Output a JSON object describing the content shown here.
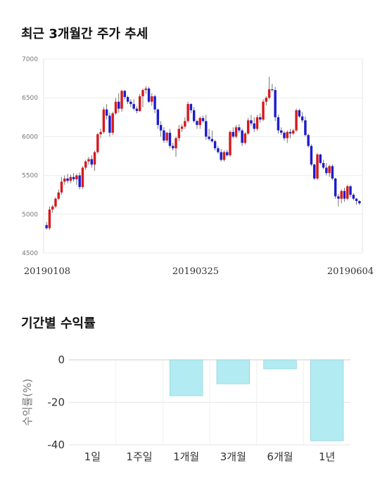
{
  "sections": {
    "price_title": "최근 3개월간 주가 추세",
    "returns_title": "기간별 수익률"
  },
  "chart_data": [
    {
      "type": "candlestick",
      "title": "최근 3개월간 주가 추세",
      "ylim": [
        4500,
        7000
      ],
      "yticks": [
        "7000",
        "6500",
        "6000",
        "5500",
        "5000",
        "4500"
      ],
      "xticks": [
        "20190108",
        "20190325",
        "20190604"
      ],
      "grid": true,
      "colors": {
        "up": "#d7191c",
        "down": "#1c1ccf",
        "wick": "#555555"
      },
      "candles": [
        [
          4860,
          4900,
          4800,
          4820
        ],
        [
          4820,
          5100,
          4800,
          5060
        ],
        [
          5060,
          5120,
          5020,
          5100
        ],
        [
          5100,
          5220,
          5080,
          5200
        ],
        [
          5200,
          5320,
          5180,
          5280
        ],
        [
          5280,
          5480,
          5250,
          5420
        ],
        [
          5420,
          5500,
          5380,
          5460
        ],
        [
          5460,
          5520,
          5400,
          5430
        ],
        [
          5430,
          5510,
          5400,
          5480
        ],
        [
          5480,
          5530,
          5420,
          5450
        ],
        [
          5450,
          5520,
          5380,
          5500
        ],
        [
          5500,
          5540,
          5320,
          5350
        ],
        [
          5350,
          5620,
          5330,
          5600
        ],
        [
          5600,
          5700,
          5570,
          5680
        ],
        [
          5680,
          5740,
          5640,
          5710
        ],
        [
          5710,
          5760,
          5600,
          5640
        ],
        [
          5640,
          5820,
          5560,
          5800
        ],
        [
          5800,
          6050,
          5780,
          6030
        ],
        [
          6030,
          6100,
          5980,
          6060
        ],
        [
          6060,
          6380,
          6040,
          6350
        ],
        [
          6350,
          6420,
          6220,
          6270
        ],
        [
          6270,
          6310,
          6000,
          6050
        ],
        [
          6050,
          6320,
          6020,
          6300
        ],
        [
          6300,
          6500,
          6280,
          6450
        ],
        [
          6450,
          6560,
          6310,
          6360
        ],
        [
          6360,
          6600,
          6320,
          6590
        ],
        [
          6590,
          6600,
          6480,
          6510
        ],
        [
          6510,
          6530,
          6420,
          6450
        ],
        [
          6450,
          6480,
          6380,
          6420
        ],
        [
          6420,
          6480,
          6340,
          6360
        ],
        [
          6360,
          6390,
          6300,
          6330
        ],
        [
          6330,
          6550,
          6320,
          6520
        ],
        [
          6520,
          6620,
          6380,
          6600
        ],
        [
          6600,
          6650,
          6550,
          6620
        ],
        [
          6620,
          6640,
          6430,
          6450
        ],
        [
          6450,
          6560,
          6400,
          6520
        ],
        [
          6520,
          6540,
          6300,
          6350
        ],
        [
          6350,
          6360,
          6100,
          6150
        ],
        [
          6150,
          6200,
          6000,
          6080
        ],
        [
          6080,
          6120,
          5920,
          5950
        ],
        [
          5950,
          6060,
          5920,
          6050
        ],
        [
          6050,
          6100,
          5850,
          5880
        ],
        [
          5880,
          5920,
          5820,
          5850
        ],
        [
          5850,
          6000,
          5740,
          5980
        ],
        [
          5980,
          6150,
          5940,
          6100
        ],
        [
          6100,
          6160,
          6060,
          6130
        ],
        [
          6130,
          6250,
          6100,
          6200
        ],
        [
          6200,
          6450,
          6180,
          6420
        ],
        [
          6420,
          6430,
          6300,
          6340
        ],
        [
          6340,
          6380,
          6180,
          6200
        ],
        [
          6200,
          6220,
          6100,
          6150
        ],
        [
          6150,
          6260,
          6100,
          6240
        ],
        [
          6240,
          6270,
          6180,
          6200
        ],
        [
          6200,
          6280,
          5960,
          6000
        ],
        [
          6000,
          6100,
          5950,
          5970
        ],
        [
          5970,
          6080,
          5920,
          5940
        ],
        [
          5940,
          5960,
          5820,
          5850
        ],
        [
          5850,
          5880,
          5780,
          5800
        ],
        [
          5800,
          5840,
          5680,
          5700
        ],
        [
          5700,
          5820,
          5680,
          5800
        ],
        [
          5800,
          5830,
          5740,
          5760
        ],
        [
          5760,
          6080,
          5740,
          6060
        ],
        [
          6060,
          6120,
          5980,
          6000
        ],
        [
          6000,
          6150,
          5980,
          6120
        ],
        [
          6120,
          6160,
          6050,
          6080
        ],
        [
          6080,
          6100,
          5880,
          5920
        ],
        [
          5920,
          6060,
          5900,
          6040
        ],
        [
          6040,
          6240,
          6020,
          6210
        ],
        [
          6210,
          6280,
          6140,
          6170
        ],
        [
          6170,
          6250,
          6060,
          6100
        ],
        [
          6100,
          6280,
          6080,
          6250
        ],
        [
          6250,
          6300,
          6180,
          6220
        ],
        [
          6220,
          6480,
          6200,
          6450
        ],
        [
          6450,
          6520,
          6400,
          6500
        ],
        [
          6500,
          6770,
          6480,
          6610
        ],
        [
          6610,
          6680,
          6580,
          6600
        ],
        [
          6600,
          6640,
          6200,
          6250
        ],
        [
          6250,
          6280,
          6040,
          6080
        ],
        [
          6080,
          6120,
          6020,
          6050
        ],
        [
          6050,
          6070,
          5950,
          5980
        ],
        [
          5980,
          6080,
          5920,
          6060
        ],
        [
          6060,
          6100,
          5980,
          6040
        ],
        [
          6040,
          6100,
          6020,
          6080
        ],
        [
          6080,
          6360,
          6060,
          6340
        ],
        [
          6340,
          6360,
          6240,
          6260
        ],
        [
          6260,
          6320,
          6180,
          6210
        ],
        [
          6210,
          6260,
          6000,
          6020
        ],
        [
          6020,
          6040,
          5860,
          5880
        ],
        [
          5880,
          5900,
          5620,
          5640
        ],
        [
          5640,
          5650,
          5440,
          5460
        ],
        [
          5460,
          5790,
          5440,
          5770
        ],
        [
          5770,
          5780,
          5640,
          5660
        ],
        [
          5660,
          5700,
          5580,
          5600
        ],
        [
          5600,
          5660,
          5500,
          5530
        ],
        [
          5530,
          5640,
          5480,
          5620
        ],
        [
          5620,
          5640,
          5440,
          5460
        ],
        [
          5460,
          5470,
          5200,
          5230
        ],
        [
          5230,
          5260,
          5100,
          5200
        ],
        [
          5200,
          5320,
          5140,
          5300
        ],
        [
          5300,
          5340,
          5160,
          5200
        ],
        [
          5200,
          5380,
          5180,
          5360
        ],
        [
          5360,
          5380,
          5220,
          5250
        ],
        [
          5250,
          5270,
          5180,
          5200
        ],
        [
          5200,
          5210,
          5120,
          5170
        ],
        [
          5170,
          5180,
          5120,
          5140
        ]
      ]
    },
    {
      "type": "bar",
      "title": "기간별 수익률",
      "categories": [
        "1일",
        "1주일",
        "1개월",
        "3개월",
        "6개월",
        "1년"
      ],
      "values": [
        0,
        0,
        -16.9,
        -11.3,
        -4.3,
        -38.1
      ],
      "ylabel": "수익률(%)",
      "ylim": [
        -40,
        0
      ],
      "yticks": [
        "0",
        "-20",
        "-40"
      ],
      "grid": true,
      "colors": {
        "bar": "#b2ebf2",
        "bar_edge": "#86cbd6"
      }
    }
  ]
}
